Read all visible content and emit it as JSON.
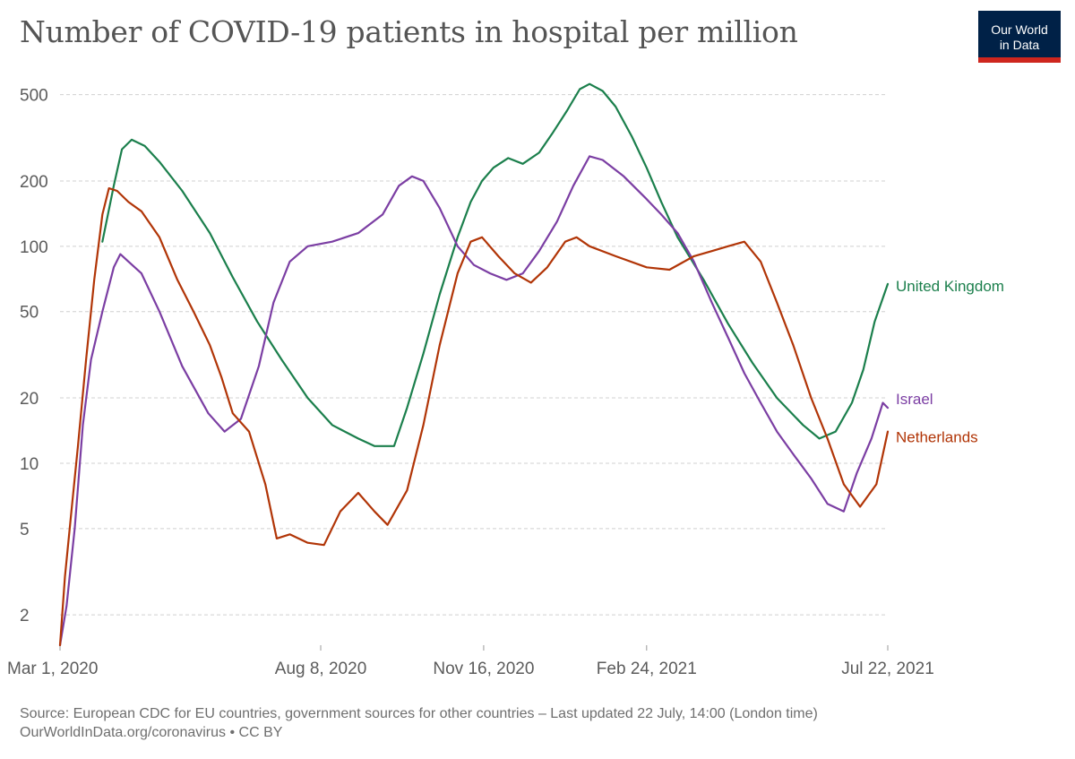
{
  "header": {
    "title": "Number of COVID-19 patients in hospital per million",
    "logo_line1": "Our World",
    "logo_line2": "in Data"
  },
  "footer": {
    "source": "Source: European CDC for EU countries, government sources for other countries – Last updated 22 July, 14:00 (London time)",
    "credit": "OurWorldInData.org/coronavirus • CC BY"
  },
  "colors": {
    "brand_background": "#002147",
    "brand_accent": "#ce261e",
    "gridline": "#d0d0d0",
    "axis_text": "#5b5b5b"
  },
  "chart_data": {
    "type": "line",
    "title": "Number of COVID-19 patients in hospital per million",
    "xlabel": "",
    "ylabel": "",
    "y_scale": "log",
    "ylim": [
      1.45,
      650
    ],
    "xlim": [
      "2020-03-01",
      "2021-07-22"
    ],
    "x_ticks": [
      "Mar 1, 2020",
      "Aug 8, 2020",
      "Nov 16, 2020",
      "Feb 24, 2021",
      "Jul 22, 2021"
    ],
    "x_tick_dates": [
      "2020-03-01",
      "2020-08-08",
      "2020-11-16",
      "2021-02-24",
      "2021-07-22"
    ],
    "y_ticks": [
      2,
      5,
      10,
      20,
      50,
      100,
      200,
      500
    ],
    "y_tick_labels": [
      "2",
      "5",
      "10",
      "20",
      "50",
      "100",
      "200",
      "500"
    ],
    "grid": "horizontal dashed",
    "legend": "labels at line ends (right)",
    "series": [
      {
        "name": "United Kingdom",
        "color": "#1b7f4c",
        "points": [
          [
            "2020-03-27",
            105
          ],
          [
            "2020-04-03",
            190
          ],
          [
            "2020-04-08",
            280
          ],
          [
            "2020-04-14",
            310
          ],
          [
            "2020-04-22",
            290
          ],
          [
            "2020-05-01",
            245
          ],
          [
            "2020-05-15",
            180
          ],
          [
            "2020-06-01",
            115
          ],
          [
            "2020-06-15",
            72
          ],
          [
            "2020-06-30",
            45
          ],
          [
            "2020-07-15",
            30
          ],
          [
            "2020-07-31",
            20
          ],
          [
            "2020-08-15",
            15
          ],
          [
            "2020-08-31",
            13
          ],
          [
            "2020-09-10",
            12
          ],
          [
            "2020-09-22",
            12
          ],
          [
            "2020-09-30",
            18
          ],
          [
            "2020-10-10",
            32
          ],
          [
            "2020-10-20",
            60
          ],
          [
            "2020-10-31",
            110
          ],
          [
            "2020-11-08",
            160
          ],
          [
            "2020-11-15",
            200
          ],
          [
            "2020-11-22",
            230
          ],
          [
            "2020-12-01",
            255
          ],
          [
            "2020-12-10",
            240
          ],
          [
            "2020-12-20",
            270
          ],
          [
            "2020-12-28",
            330
          ],
          [
            "2021-01-06",
            420
          ],
          [
            "2021-01-14",
            530
          ],
          [
            "2021-01-20",
            560
          ],
          [
            "2021-01-28",
            520
          ],
          [
            "2021-02-05",
            440
          ],
          [
            "2021-02-15",
            320
          ],
          [
            "2021-02-24",
            230
          ],
          [
            "2021-03-05",
            160
          ],
          [
            "2021-03-15",
            110
          ],
          [
            "2021-03-31",
            70
          ],
          [
            "2021-04-15",
            44
          ],
          [
            "2021-04-30",
            29
          ],
          [
            "2021-05-15",
            20
          ],
          [
            "2021-05-31",
            15
          ],
          [
            "2021-06-10",
            13
          ],
          [
            "2021-06-20",
            14
          ],
          [
            "2021-06-30",
            19
          ],
          [
            "2021-07-07",
            27
          ],
          [
            "2021-07-14",
            45
          ],
          [
            "2021-07-22",
            67
          ]
        ]
      },
      {
        "name": "Israel",
        "color": "#7b3ea3",
        "points": [
          [
            "2020-03-01",
            1.45
          ],
          [
            "2020-03-05",
            2.2
          ],
          [
            "2020-03-10",
            5
          ],
          [
            "2020-03-15",
            15
          ],
          [
            "2020-03-20",
            30
          ],
          [
            "2020-03-27",
            50
          ],
          [
            "2020-04-03",
            80
          ],
          [
            "2020-04-07",
            92
          ],
          [
            "2020-04-12",
            85
          ],
          [
            "2020-04-20",
            75
          ],
          [
            "2020-05-01",
            50
          ],
          [
            "2020-05-15",
            28
          ],
          [
            "2020-05-31",
            17
          ],
          [
            "2020-06-10",
            14
          ],
          [
            "2020-06-20",
            16
          ],
          [
            "2020-07-01",
            28
          ],
          [
            "2020-07-10",
            55
          ],
          [
            "2020-07-20",
            85
          ],
          [
            "2020-07-31",
            100
          ],
          [
            "2020-08-15",
            105
          ],
          [
            "2020-08-31",
            115
          ],
          [
            "2020-09-15",
            140
          ],
          [
            "2020-09-25",
            190
          ],
          [
            "2020-10-03",
            210
          ],
          [
            "2020-10-10",
            200
          ],
          [
            "2020-10-20",
            150
          ],
          [
            "2020-10-31",
            100
          ],
          [
            "2020-11-10",
            82
          ],
          [
            "2020-11-20",
            75
          ],
          [
            "2020-11-30",
            70
          ],
          [
            "2020-12-10",
            75
          ],
          [
            "2020-12-20",
            95
          ],
          [
            "2020-12-31",
            130
          ],
          [
            "2021-01-10",
            190
          ],
          [
            "2021-01-20",
            260
          ],
          [
            "2021-01-28",
            250
          ],
          [
            "2021-02-10",
            210
          ],
          [
            "2021-02-24",
            165
          ],
          [
            "2021-03-05",
            140
          ],
          [
            "2021-03-15",
            115
          ],
          [
            "2021-03-25",
            85
          ],
          [
            "2021-04-05",
            55
          ],
          [
            "2021-04-15",
            38
          ],
          [
            "2021-04-25",
            26
          ],
          [
            "2021-05-05",
            19
          ],
          [
            "2021-05-15",
            14
          ],
          [
            "2021-05-25",
            11
          ],
          [
            "2021-06-05",
            8.5
          ],
          [
            "2021-06-15",
            6.5
          ],
          [
            "2021-06-25",
            6
          ],
          [
            "2021-07-03",
            9
          ],
          [
            "2021-07-12",
            13
          ],
          [
            "2021-07-19",
            19
          ],
          [
            "2021-07-22",
            18
          ]
        ]
      },
      {
        "name": "Netherlands",
        "color": "#b13507",
        "points": [
          [
            "2020-03-01",
            1.45
          ],
          [
            "2020-03-04",
            3
          ],
          [
            "2020-03-08",
            6
          ],
          [
            "2020-03-12",
            12
          ],
          [
            "2020-03-17",
            30
          ],
          [
            "2020-03-22",
            70
          ],
          [
            "2020-03-27",
            140
          ],
          [
            "2020-03-31",
            185
          ],
          [
            "2020-04-05",
            180
          ],
          [
            "2020-04-12",
            160
          ],
          [
            "2020-04-20",
            145
          ],
          [
            "2020-05-01",
            110
          ],
          [
            "2020-05-12",
            70
          ],
          [
            "2020-05-22",
            50
          ],
          [
            "2020-06-01",
            35
          ],
          [
            "2020-06-08",
            25
          ],
          [
            "2020-06-15",
            17
          ],
          [
            "2020-06-25",
            14
          ],
          [
            "2020-07-05",
            8
          ],
          [
            "2020-07-12",
            4.5
          ],
          [
            "2020-07-20",
            4.7
          ],
          [
            "2020-07-31",
            4.3
          ],
          [
            "2020-08-10",
            4.2
          ],
          [
            "2020-08-20",
            6
          ],
          [
            "2020-08-31",
            7.3
          ],
          [
            "2020-09-10",
            6
          ],
          [
            "2020-09-18",
            5.2
          ],
          [
            "2020-09-30",
            7.5
          ],
          [
            "2020-10-10",
            15
          ],
          [
            "2020-10-20",
            35
          ],
          [
            "2020-10-31",
            75
          ],
          [
            "2020-11-08",
            105
          ],
          [
            "2020-11-15",
            110
          ],
          [
            "2020-11-25",
            90
          ],
          [
            "2020-12-05",
            75
          ],
          [
            "2020-12-15",
            68
          ],
          [
            "2020-12-25",
            80
          ],
          [
            "2021-01-05",
            105
          ],
          [
            "2021-01-12",
            110
          ],
          [
            "2021-01-20",
            100
          ],
          [
            "2021-02-05",
            90
          ],
          [
            "2021-02-24",
            80
          ],
          [
            "2021-03-10",
            78
          ],
          [
            "2021-03-25",
            90
          ],
          [
            "2021-04-05",
            95
          ],
          [
            "2021-04-15",
            100
          ],
          [
            "2021-04-25",
            105
          ],
          [
            "2021-05-05",
            85
          ],
          [
            "2021-05-15",
            55
          ],
          [
            "2021-05-25",
            35
          ],
          [
            "2021-06-05",
            20
          ],
          [
            "2021-06-15",
            13
          ],
          [
            "2021-06-25",
            8
          ],
          [
            "2021-07-05",
            6.3
          ],
          [
            "2021-07-15",
            8
          ],
          [
            "2021-07-22",
            14
          ]
        ]
      }
    ]
  }
}
